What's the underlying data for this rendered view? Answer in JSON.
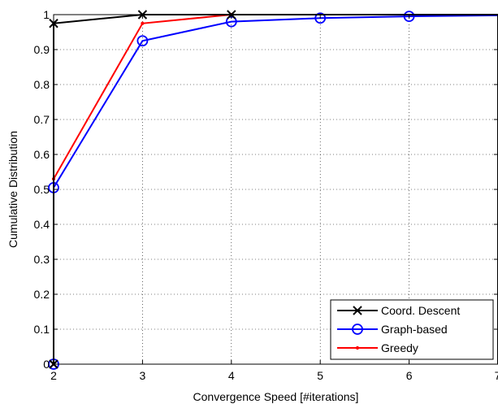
{
  "chart_data": {
    "type": "line",
    "xlabel": "Convergence Speed [#iterations]",
    "ylabel": "Cumulative Distribution",
    "xlim": [
      2,
      7
    ],
    "ylim": [
      0,
      1
    ],
    "xticks": [
      "2",
      "3",
      "4",
      "5",
      "6",
      "7"
    ],
    "yticks": [
      "0",
      "0.1",
      "0.2",
      "0.3",
      "0.4",
      "0.5",
      "0.6",
      "0.7",
      "0.8",
      "0.9",
      "1"
    ],
    "grid": true,
    "legend_position": "bottom-right",
    "series": [
      {
        "name": "Coord. Descent",
        "color": "#000000",
        "marker": "x",
        "points": [
          [
            2,
            0
          ],
          [
            2,
            0.975
          ],
          [
            3,
            1.0
          ],
          [
            4,
            1.0
          ],
          [
            7,
            1.0
          ]
        ],
        "marker_points": [
          [
            2,
            0
          ],
          [
            2,
            0.975
          ],
          [
            3,
            1.0
          ],
          [
            4,
            1.0
          ]
        ]
      },
      {
        "name": "Graph-based",
        "color": "#0000ff",
        "marker": "circle",
        "points": [
          [
            2,
            0
          ],
          [
            2,
            0.505
          ],
          [
            3,
            0.925
          ],
          [
            4,
            0.98
          ],
          [
            5,
            0.99
          ],
          [
            6,
            0.995
          ],
          [
            7,
            0.998
          ]
        ],
        "marker_points": [
          [
            2,
            0
          ],
          [
            2,
            0.505
          ],
          [
            3,
            0.925
          ],
          [
            4,
            0.98
          ],
          [
            5,
            0.99
          ],
          [
            6,
            0.995
          ]
        ]
      },
      {
        "name": "Greedy",
        "color": "#ff0000",
        "marker": "dot",
        "points": [
          [
            2,
            0
          ],
          [
            2,
            0.53
          ],
          [
            3,
            0.975
          ],
          [
            4,
            1.0
          ],
          [
            7,
            1.0
          ]
        ],
        "marker_points": [
          [
            2,
            0
          ],
          [
            2,
            0.53
          ],
          [
            3,
            0.975
          ],
          [
            4,
            1.0
          ]
        ]
      }
    ]
  }
}
